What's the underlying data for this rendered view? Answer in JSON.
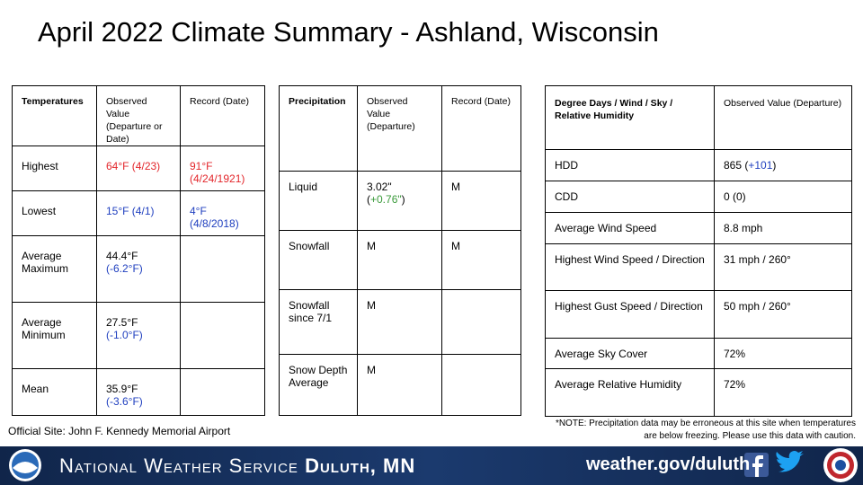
{
  "title": "April 2022 Climate Summary - Ashland, Wisconsin",
  "temperatures": {
    "header": [
      "Temperatures",
      "Observed Value (Departure or Date)",
      "Record (Date)"
    ],
    "rows": [
      [
        [
          {
            "text": "Highest"
          }
        ],
        [
          {
            "text": "64°F (4/23)",
            "color": "#e3262b"
          }
        ],
        [
          {
            "text": "91°F (4/24/1921)",
            "color": "#e3262b"
          }
        ]
      ],
      [
        [
          {
            "text": "Lowest"
          }
        ],
        [
          {
            "text": "15°F (4/1)",
            "color": "#1f3fbf"
          }
        ],
        [
          {
            "text": "4°F (4/8/2018)",
            "color": "#1f3fbf"
          }
        ]
      ],
      [
        [
          {
            "text": "Average Maximum"
          }
        ],
        [
          {
            "text": "44.4°F "
          },
          {
            "text": "(-6.2°F)",
            "color": "#1f3fbf"
          }
        ],
        []
      ],
      [
        [
          {
            "text": "Average Minimum"
          }
        ],
        [
          {
            "text": "27.5°F "
          },
          {
            "text": "(-1.0°F)",
            "color": "#1f3fbf"
          }
        ],
        []
      ],
      [
        [
          {
            "text": "Mean"
          }
        ],
        [
          {
            "text": "35.9°F "
          },
          {
            "text": "(-3.6°F)",
            "color": "#1f3fbf"
          }
        ],
        []
      ]
    ]
  },
  "precipitation": {
    "header": [
      "Precipitation",
      "Observed Value (Departure)",
      "Record (Date)"
    ],
    "rows": [
      [
        [
          {
            "text": "Liquid"
          }
        ],
        [
          {
            "text": "3.02\" ("
          },
          {
            "text": "+0.76\"",
            "color": "#3a9a3a"
          },
          {
            "text": ")"
          }
        ],
        [
          {
            "text": "M"
          }
        ]
      ],
      [
        [
          {
            "text": "Snowfall"
          }
        ],
        [
          {
            "text": "M"
          }
        ],
        [
          {
            "text": "M"
          }
        ]
      ],
      [
        [
          {
            "text": "Snowfall since 7/1"
          }
        ],
        [
          {
            "text": "M"
          }
        ],
        []
      ],
      [
        [
          {
            "text": "Snow Depth Average"
          }
        ],
        [
          {
            "text": "M"
          }
        ],
        []
      ]
    ]
  },
  "other": {
    "header": [
      "Degree Days / Wind / Sky / Relative Humidity",
      "Observed Value (Departure)"
    ],
    "rows": [
      [
        [
          {
            "text": "HDD"
          }
        ],
        [
          {
            "text": "865 ("
          },
          {
            "text": "+101",
            "color": "#1f3fbf"
          },
          {
            "text": ")"
          }
        ]
      ],
      [
        [
          {
            "text": "CDD"
          }
        ],
        [
          {
            "text": "0 (0)"
          }
        ]
      ],
      [
        [
          {
            "text": "Average Wind Speed"
          }
        ],
        [
          {
            "text": "8.8 mph"
          }
        ]
      ],
      [
        [
          {
            "text": "Highest Wind Speed / Direction"
          }
        ],
        [
          {
            "text": "31 mph / 260°"
          }
        ]
      ],
      [
        [
          {
            "text": "Highest Gust Speed / Direction"
          }
        ],
        [
          {
            "text": "50 mph / 260°"
          }
        ]
      ],
      [
        [
          {
            "text": "Average Sky Cover"
          }
        ],
        [
          {
            "text": "72%"
          }
        ]
      ],
      [
        [
          {
            "text": "Average Relative Humidity"
          }
        ],
        [
          {
            "text": "72%"
          }
        ]
      ]
    ]
  },
  "site": "Official Site: John F. Kennedy Memorial Airport",
  "note": "*NOTE:  Precipitation data may be erroneous at this site when temperatures are below freezing. Please use this data with caution.",
  "footer": {
    "org": "National Weather Service",
    "office": "Duluth, MN",
    "url": "weather.gov/duluth"
  }
}
